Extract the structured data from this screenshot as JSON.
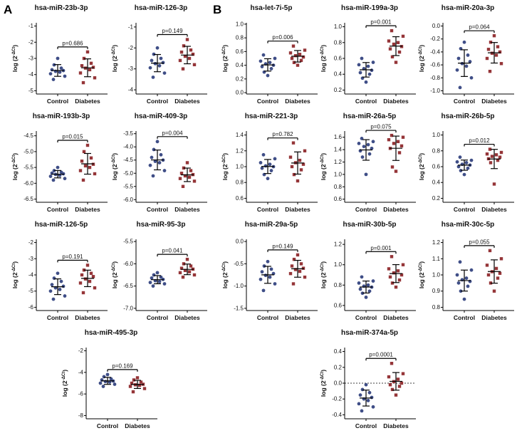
{
  "figure": {
    "panels": [
      {
        "label": "A"
      },
      {
        "label": "B"
      }
    ]
  },
  "shared": {
    "x_labels": [
      "Control",
      "Diabetes"
    ],
    "ylabel": "log (2^-ΔCt)",
    "ylabel_prefix": "log (2",
    "ylabel_sup": "-ΔCt",
    "ylabel_suffix": ")",
    "colors": {
      "control": "#3f4e87",
      "diabetes": "#953538",
      "error_bar": "#000000"
    }
  },
  "chart_data": [
    {
      "panel": "A",
      "type": "scatter",
      "title": "hsa-miR-23b-3p",
      "p_label": "p=0.686",
      "ylim": [
        -5.2,
        -0.8
      ],
      "yticks": [
        -1,
        -2,
        -3,
        -4,
        -5
      ],
      "ytick_labels": [
        "-1",
        "-2",
        "-3",
        "-4",
        "-5"
      ],
      "zero_line": false,
      "center": false,
      "series": [
        {
          "name": "Control",
          "values": [
            -3.0,
            -3.4,
            -3.6,
            -3.7,
            -3.75,
            -3.8,
            -3.85,
            -3.95,
            -4.1,
            -4.3
          ]
        },
        {
          "name": "Diabetes",
          "values": [
            -2.6,
            -3.0,
            -3.3,
            -3.45,
            -3.55,
            -3.6,
            -3.7,
            -3.9,
            -4.2,
            -4.5
          ]
        }
      ]
    },
    {
      "panel": "A",
      "type": "scatter",
      "title": "hsa-miR-126-3p",
      "p_label": "p=0.149",
      "ylim": [
        -4.2,
        -0.8
      ],
      "yticks": [
        -1,
        -2,
        -3,
        -4
      ],
      "ytick_labels": [
        "-1",
        "-2",
        "-3",
        "-4"
      ],
      "zero_line": false,
      "center": false,
      "series": [
        {
          "name": "Control",
          "values": [
            -2.0,
            -2.3,
            -2.5,
            -2.6,
            -2.7,
            -2.75,
            -2.85,
            -2.95,
            -3.2,
            -3.4
          ]
        },
        {
          "name": "Diabetes",
          "values": [
            -1.6,
            -1.9,
            -2.1,
            -2.2,
            -2.3,
            -2.4,
            -2.5,
            -2.6,
            -2.8,
            -3.0
          ]
        }
      ]
    },
    {
      "panel": "A",
      "type": "scatter",
      "title": "hsa-miR-193b-3p",
      "p_label": "p=0.015",
      "ylim": [
        -6.6,
        -4.35
      ],
      "yticks": [
        -4.5,
        -5.0,
        -5.5,
        -6.0,
        -6.5
      ],
      "ytick_labels": [
        "-4.5",
        "-5.0",
        "-5.5",
        "-6.0",
        "-6.5"
      ],
      "zero_line": false,
      "center": false,
      "series": [
        {
          "name": "Control",
          "values": [
            -5.5,
            -5.6,
            -5.65,
            -5.68,
            -5.7,
            -5.72,
            -5.75,
            -5.78,
            -5.85,
            -5.9
          ]
        },
        {
          "name": "Diabetes",
          "values": [
            -4.8,
            -5.0,
            -5.2,
            -5.3,
            -5.4,
            -5.45,
            -5.5,
            -5.6,
            -5.7,
            -5.9
          ]
        }
      ]
    },
    {
      "panel": "A",
      "type": "scatter",
      "title": "hsa-miR-409-3p",
      "p_label": "p=0.004",
      "ylim": [
        -6.1,
        -3.4
      ],
      "yticks": [
        -3.5,
        -4.0,
        -4.5,
        -5.0,
        -5.5,
        -6.0
      ],
      "ytick_labels": [
        "-3.5",
        "-4.0",
        "-4.5",
        "-5.0",
        "-5.5",
        "-6.0"
      ],
      "zero_line": false,
      "center": false,
      "series": [
        {
          "name": "Control",
          "values": [
            -3.8,
            -4.1,
            -4.3,
            -4.4,
            -4.5,
            -4.55,
            -4.6,
            -4.7,
            -4.9,
            -5.1
          ]
        },
        {
          "name": "Diabetes",
          "values": [
            -4.6,
            -4.8,
            -4.9,
            -5.0,
            -5.05,
            -5.1,
            -5.15,
            -5.2,
            -5.3,
            -5.5
          ]
        }
      ]
    },
    {
      "panel": "A",
      "type": "scatter",
      "title": "hsa-miR-126-5p",
      "p_label": "p=0.191",
      "ylim": [
        -6.2,
        -1.8
      ],
      "yticks": [
        -2,
        -3,
        -4,
        -5,
        -6
      ],
      "ytick_labels": [
        "-2",
        "-3",
        "-4",
        "-5",
        "-6"
      ],
      "zero_line": false,
      "center": false,
      "series": [
        {
          "name": "Control",
          "values": [
            -3.9,
            -4.2,
            -4.4,
            -4.6,
            -4.7,
            -4.8,
            -4.9,
            -5.0,
            -5.3,
            -5.5
          ]
        },
        {
          "name": "Diabetes",
          "values": [
            -3.4,
            -3.7,
            -3.9,
            -4.0,
            -4.1,
            -4.25,
            -4.4,
            -4.5,
            -4.8,
            -5.1
          ]
        }
      ]
    },
    {
      "panel": "A",
      "type": "scatter",
      "title": "hsa-miR-95-3p",
      "p_label": "p=0.041",
      "ylim": [
        -7.05,
        -5.45
      ],
      "yticks": [
        -5.5,
        -6.0,
        -6.5,
        -7.0
      ],
      "ytick_labels": [
        "-5.5",
        "-6.0",
        "-6.5",
        "-7.0"
      ],
      "zero_line": false,
      "center": false,
      "series": [
        {
          "name": "Control",
          "values": [
            -6.2,
            -6.25,
            -6.3,
            -6.32,
            -6.35,
            -6.38,
            -6.4,
            -6.42,
            -6.45,
            -6.5
          ]
        },
        {
          "name": "Diabetes",
          "values": [
            -5.9,
            -6.0,
            -6.05,
            -6.1,
            -6.12,
            -6.15,
            -6.18,
            -6.2,
            -6.25,
            -6.3
          ]
        }
      ]
    },
    {
      "panel": "A",
      "type": "scatter",
      "title": "hsa-miR-495-3p",
      "p_label": "p=0.169",
      "ylim": [
        -8.3,
        -1.7
      ],
      "yticks": [
        -2,
        -4,
        -6,
        -8
      ],
      "ytick_labels": [
        "-2",
        "-4",
        "-6",
        "-8"
      ],
      "zero_line": false,
      "center": true,
      "series": [
        {
          "name": "Control",
          "values": [
            -4.2,
            -4.4,
            -4.6,
            -4.7,
            -4.8,
            -4.85,
            -4.9,
            -5.0,
            -5.1,
            -5.3
          ]
        },
        {
          "name": "Diabetes",
          "values": [
            -4.5,
            -4.7,
            -4.9,
            -5.0,
            -5.1,
            -5.15,
            -5.2,
            -5.3,
            -5.5,
            -5.8
          ]
        }
      ]
    },
    {
      "panel": "B",
      "type": "scatter",
      "title": "hsa-let-7i-5p",
      "p_label": "p=0.006",
      "ylim": [
        -0.02,
        1.02
      ],
      "yticks": [
        1.0,
        0.8,
        0.6,
        0.4,
        0.2,
        0.0
      ],
      "ytick_labels": [
        "1.0",
        "0.8",
        "0.6",
        "0.4",
        "0.2",
        "0.0"
      ],
      "zero_line": false,
      "center": false,
      "series": [
        {
          "name": "Control",
          "values": [
            0.25,
            0.3,
            0.35,
            0.38,
            0.4,
            0.42,
            0.44,
            0.46,
            0.5,
            0.55
          ]
        },
        {
          "name": "Diabetes",
          "values": [
            0.4,
            0.44,
            0.47,
            0.5,
            0.52,
            0.54,
            0.56,
            0.58,
            0.62,
            0.68
          ]
        }
      ]
    },
    {
      "panel": "B",
      "type": "scatter",
      "title": "hsa-miR-199a-3p",
      "p_label": "p=0.001",
      "ylim": [
        0.15,
        1.05
      ],
      "yticks": [
        1.0,
        0.8,
        0.6,
        0.4,
        0.2
      ],
      "ytick_labels": [
        "1.0",
        "0.8",
        "0.6",
        "0.4",
        "0.2"
      ],
      "zero_line": false,
      "center": false,
      "series": [
        {
          "name": "Control",
          "values": [
            0.3,
            0.35,
            0.4,
            0.42,
            0.45,
            0.47,
            0.5,
            0.52,
            0.55,
            0.6
          ]
        },
        {
          "name": "Diabetes",
          "values": [
            0.55,
            0.62,
            0.68,
            0.72,
            0.75,
            0.78,
            0.8,
            0.82,
            0.88,
            0.95
          ]
        }
      ]
    },
    {
      "panel": "B",
      "type": "scatter",
      "title": "hsa-miR-20a-3p",
      "p_label": "p=0.064",
      "ylim": [
        -1.05,
        0.05
      ],
      "yticks": [
        0.0,
        -0.2,
        -0.4,
        -0.6,
        -0.8,
        -1.0
      ],
      "ytick_labels": [
        "0.0",
        "-0.2",
        "-0.4",
        "-0.6",
        "-0.8",
        "-1.0"
      ],
      "zero_line": false,
      "center": false,
      "series": [
        {
          "name": "Control",
          "values": [
            -0.25,
            -0.35,
            -0.45,
            -0.5,
            -0.55,
            -0.58,
            -0.62,
            -0.68,
            -0.8,
            -0.95
          ]
        },
        {
          "name": "Diabetes",
          "values": [
            -0.15,
            -0.25,
            -0.32,
            -0.36,
            -0.4,
            -0.42,
            -0.45,
            -0.5,
            -0.58,
            -0.7
          ]
        }
      ]
    },
    {
      "panel": "B",
      "type": "scatter",
      "title": "hsa-miR-221-3p",
      "p_label": "p=0.782",
      "ylim": [
        0.55,
        1.45
      ],
      "yticks": [
        1.4,
        1.2,
        1.0,
        0.8,
        0.6
      ],
      "ytick_labels": [
        "1.4",
        "1.2",
        "1.0",
        "0.8",
        "0.6"
      ],
      "zero_line": false,
      "center": false,
      "series": [
        {
          "name": "Control",
          "values": [
            0.85,
            0.9,
            0.95,
            0.98,
            1.0,
            1.01,
            1.03,
            1.05,
            1.1,
            1.15
          ]
        },
        {
          "name": "Diabetes",
          "values": [
            0.82,
            0.9,
            0.96,
            1.0,
            1.03,
            1.05,
            1.08,
            1.12,
            1.2,
            1.3
          ]
        }
      ]
    },
    {
      "panel": "B",
      "type": "scatter",
      "title": "hsa-miR-26a-5p",
      "p_label": "p=0.075",
      "ylim": [
        0.55,
        1.7
      ],
      "yticks": [
        1.6,
        1.4,
        1.2,
        1.0,
        0.8,
        0.6
      ],
      "ytick_labels": [
        "1.6",
        "1.4",
        "1.2",
        "1.0",
        "0.8",
        "0.6"
      ],
      "zero_line": false,
      "center": false,
      "series": [
        {
          "name": "Control",
          "values": [
            1.0,
            1.28,
            1.33,
            1.38,
            1.42,
            1.45,
            1.48,
            1.5,
            1.53,
            1.58
          ]
        },
        {
          "name": "Diabetes",
          "values": [
            1.05,
            1.12,
            1.35,
            1.42,
            1.46,
            1.5,
            1.53,
            1.56,
            1.6,
            1.63
          ]
        }
      ]
    },
    {
      "panel": "B",
      "type": "scatter",
      "title": "hsa-miR-26b-5p",
      "p_label": "p=0.012",
      "ylim": [
        0.15,
        1.05
      ],
      "yticks": [
        1.0,
        0.8,
        0.6,
        0.4,
        0.2
      ],
      "ytick_labels": [
        "1.0",
        "0.8",
        "0.6",
        "0.4",
        "0.2"
      ],
      "zero_line": false,
      "center": false,
      "series": [
        {
          "name": "Control",
          "values": [
            0.5,
            0.55,
            0.58,
            0.6,
            0.62,
            0.63,
            0.65,
            0.66,
            0.68,
            0.72
          ]
        },
        {
          "name": "Diabetes",
          "values": [
            0.38,
            0.65,
            0.68,
            0.7,
            0.72,
            0.73,
            0.75,
            0.76,
            0.78,
            0.82
          ]
        }
      ]
    },
    {
      "panel": "B",
      "type": "scatter",
      "title": "hsa-miR-29a-5p",
      "p_label": "p=0.149",
      "ylim": [
        -1.55,
        0.05
      ],
      "yticks": [
        0.0,
        -0.5,
        -1.0,
        -1.5
      ],
      "ytick_labels": [
        "0.0",
        "-0.5",
        "-1.0",
        "-1.5"
      ],
      "zero_line": false,
      "center": false,
      "series": [
        {
          "name": "Control",
          "values": [
            -0.45,
            -0.55,
            -0.62,
            -0.68,
            -0.72,
            -0.76,
            -0.8,
            -0.85,
            -0.95,
            -1.1
          ]
        },
        {
          "name": "Diabetes",
          "values": [
            -0.3,
            -0.4,
            -0.5,
            -0.55,
            -0.6,
            -0.63,
            -0.67,
            -0.72,
            -0.8,
            -0.95
          ]
        }
      ]
    },
    {
      "panel": "B",
      "type": "scatter",
      "title": "hsa-miR-30b-5p",
      "p_label": "p=0.001",
      "ylim": [
        0.55,
        1.25
      ],
      "yticks": [
        1.2,
        1.0,
        0.8,
        0.6
      ],
      "ytick_labels": [
        "1.2",
        "1.0",
        "0.8",
        "0.6"
      ],
      "zero_line": false,
      "center": false,
      "series": [
        {
          "name": "Control",
          "values": [
            0.68,
            0.72,
            0.74,
            0.76,
            0.78,
            0.79,
            0.8,
            0.82,
            0.84,
            0.88
          ]
        },
        {
          "name": "Diabetes",
          "values": [
            0.78,
            0.82,
            0.85,
            0.88,
            0.9,
            0.92,
            0.94,
            0.96,
            1.0,
            1.08
          ]
        }
      ]
    },
    {
      "panel": "B",
      "type": "scatter",
      "title": "hsa-miR-30c-5p",
      "p_label": "p=0.055",
      "ylim": [
        0.78,
        1.22
      ],
      "yticks": [
        1.2,
        1.1,
        1.0,
        0.9,
        0.8
      ],
      "ytick_labels": [
        "1.2",
        "1.1",
        "1.0",
        "0.9",
        "0.8"
      ],
      "zero_line": false,
      "center": false,
      "series": [
        {
          "name": "Control",
          "values": [
            0.85,
            0.9,
            0.93,
            0.95,
            0.96,
            0.97,
            0.98,
            1.0,
            1.03,
            1.08
          ]
        },
        {
          "name": "Diabetes",
          "values": [
            0.9,
            0.95,
            0.98,
            1.0,
            1.01,
            1.02,
            1.04,
            1.06,
            1.1,
            1.15
          ]
        }
      ]
    },
    {
      "panel": "B",
      "type": "scatter",
      "title": "hsa-miR-374a-5p",
      "p_label": "p=0.0001",
      "ylim": [
        -0.45,
        0.45
      ],
      "yticks": [
        0.4,
        0.2,
        0.0,
        -0.2,
        -0.4
      ],
      "ytick_labels": [
        "0.4",
        "0.2",
        "0.0",
        "-0.2",
        "-0.4"
      ],
      "zero_line": true,
      "center": true,
      "series": [
        {
          "name": "Control",
          "values": [
            -0.02,
            -0.08,
            -0.12,
            -0.15,
            -0.18,
            -0.2,
            -0.22,
            -0.26,
            -0.3,
            -0.35
          ]
        },
        {
          "name": "Diabetes",
          "values": [
            -0.15,
            -0.08,
            -0.04,
            -0.02,
            0.0,
            0.02,
            0.05,
            0.08,
            0.12,
            0.25
          ]
        }
      ]
    }
  ]
}
